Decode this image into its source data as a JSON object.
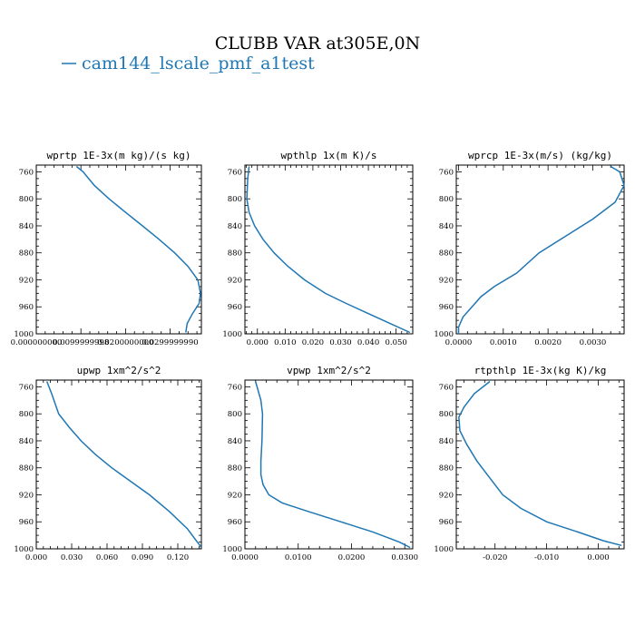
{
  "figure": {
    "title": "CLUBB VAR at305E,0N",
    "legend_label": "cam144_lscale_pmf_a1test",
    "legend_color": "#1f77b4"
  },
  "chart_data": [
    {
      "type": "line",
      "title": "wprtp  1E-3x(m kg)/(s kg)",
      "xlim": [
        0.0,
        0.037
      ],
      "ylim": [
        1000,
        750
      ],
      "xticks": [
        0.0,
        0.01,
        0.02,
        0.03
      ],
      "xtick_labels": [
        "0.000000000",
        "0.0099999998",
        "0.0200000000",
        "0.0299999990"
      ],
      "yticks": [
        760,
        800,
        840,
        880,
        920,
        960,
        1000
      ],
      "ytick_labels": [
        "760",
        "800",
        "840",
        "880",
        "920",
        "960",
        "1000"
      ],
      "series": [
        {
          "color": "#1f77b4",
          "x": [
            0.009,
            0.0105,
            0.013,
            0.0163,
            0.02,
            0.0238,
            0.0275,
            0.031,
            0.034,
            0.0362,
            0.0368,
            0.0365,
            0.035,
            0.0338,
            0.0335
          ],
          "y": [
            752,
            760,
            780,
            800,
            820,
            840,
            860,
            880,
            900,
            920,
            940,
            955,
            970,
            985,
            998
          ]
        }
      ]
    },
    {
      "type": "line",
      "title": "wpthlp  1x(m K)/s",
      "xlim": [
        -0.0045,
        0.056
      ],
      "ylim": [
        1000,
        750
      ],
      "xticks": [
        0.0,
        0.01,
        0.02,
        0.03,
        0.04,
        0.05
      ],
      "xtick_labels": [
        "0.000",
        "0.010",
        "0.020",
        "0.030",
        "0.040",
        "0.050"
      ],
      "yticks": [
        760,
        800,
        840,
        880,
        920,
        960,
        1000
      ],
      "ytick_labels": [
        "760",
        "800",
        "840",
        "880",
        "920",
        "960",
        "1000"
      ],
      "series": [
        {
          "color": "#1f77b4",
          "x": [
            -0.003,
            -0.0035,
            -0.0038,
            -0.003,
            -0.001,
            0.002,
            0.006,
            0.011,
            0.017,
            0.0245,
            0.032,
            0.04,
            0.048,
            0.055
          ],
          "y": [
            752,
            770,
            800,
            820,
            840,
            860,
            880,
            900,
            920,
            940,
            955,
            970,
            985,
            998
          ]
        }
      ]
    },
    {
      "type": "line",
      "title": "wprcp  1E-3x(m/s) (kg/kg)",
      "xlim": [
        -5e-05,
        0.0037
      ],
      "ylim": [
        1000,
        750
      ],
      "xticks": [
        0.0,
        0.001,
        0.002,
        0.003
      ],
      "xtick_labels": [
        "0.0000",
        "0.0010",
        "0.0020",
        "0.0030"
      ],
      "yticks": [
        760,
        800,
        840,
        880,
        920,
        960,
        1000
      ],
      "ytick_labels": [
        "760",
        "800",
        "840",
        "880",
        "920",
        "960",
        "1000"
      ],
      "series": [
        {
          "color": "#1f77b4",
          "x": [
            0.0034,
            0.0036,
            0.0037,
            0.0035,
            0.003,
            0.0024,
            0.0018,
            0.0013,
            0.0008,
            0.0005,
            0.0003,
            0.0001,
            0.0,
            0.0
          ],
          "y": [
            752,
            760,
            780,
            805,
            830,
            855,
            880,
            910,
            930,
            945,
            960,
            975,
            990,
            1000
          ]
        }
      ]
    },
    {
      "type": "line",
      "title": "upwp  1xm^2/s^2",
      "xlim": [
        0.0,
        0.14
      ],
      "ylim": [
        1000,
        750
      ],
      "xticks": [
        0.0,
        0.03,
        0.06,
        0.09,
        0.12
      ],
      "xtick_labels": [
        "0.000",
        "0.030",
        "0.060",
        "0.090",
        "0.120"
      ],
      "yticks": [
        760,
        800,
        840,
        880,
        920,
        960,
        1000
      ],
      "ytick_labels": [
        "760",
        "800",
        "840",
        "880",
        "920",
        "960",
        "1000"
      ],
      "series": [
        {
          "color": "#1f77b4",
          "x": [
            0.009,
            0.013,
            0.019,
            0.028,
            0.038,
            0.05,
            0.064,
            0.08,
            0.096,
            0.113,
            0.128,
            0.14
          ],
          "y": [
            752,
            770,
            800,
            820,
            840,
            860,
            880,
            900,
            920,
            945,
            970,
            998
          ]
        }
      ]
    },
    {
      "type": "line",
      "title": "vpwp  1xm^2/s^2",
      "xlim": [
        0.0,
        0.0315
      ],
      "ylim": [
        1000,
        750
      ],
      "xticks": [
        0.0,
        0.01,
        0.02,
        0.03
      ],
      "xtick_labels": [
        "0.0000",
        "0.0100",
        "0.0200",
        "0.0300"
      ],
      "yticks": [
        760,
        800,
        840,
        880,
        920,
        960,
        1000
      ],
      "ytick_labels": [
        "760",
        "800",
        "840",
        "880",
        "920",
        "960",
        "1000"
      ],
      "series": [
        {
          "color": "#1f77b4",
          "x": [
            0.002,
            0.003,
            0.0033,
            0.0032,
            0.003,
            0.003,
            0.0034,
            0.0045,
            0.007,
            0.012,
            0.018,
            0.024,
            0.029,
            0.031
          ],
          "y": [
            752,
            780,
            800,
            840,
            870,
            890,
            905,
            920,
            932,
            945,
            960,
            975,
            990,
            998
          ]
        }
      ]
    },
    {
      "type": "line",
      "title": "rtpthlp  1E-3x(kg K)/kg",
      "xlim": [
        -0.0275,
        0.005
      ],
      "ylim": [
        1000,
        750
      ],
      "xticks": [
        -0.02,
        -0.01,
        0.0
      ],
      "xtick_labels": [
        "-0.020",
        "-0.010",
        "0.000"
      ],
      "yticks": [
        760,
        800,
        840,
        880,
        920,
        960,
        1000
      ],
      "ytick_labels": [
        "760",
        "800",
        "840",
        "880",
        "920",
        "960",
        "1000"
      ],
      "series": [
        {
          "color": "#1f77b4",
          "x": [
            -0.021,
            -0.024,
            -0.026,
            -0.027,
            -0.0268,
            -0.0255,
            -0.0235,
            -0.021,
            -0.0185,
            -0.015,
            -0.01,
            -0.004,
            0.001,
            0.0045
          ],
          "y": [
            752,
            770,
            790,
            805,
            825,
            845,
            870,
            895,
            920,
            940,
            960,
            975,
            988,
            995
          ]
        }
      ]
    }
  ]
}
